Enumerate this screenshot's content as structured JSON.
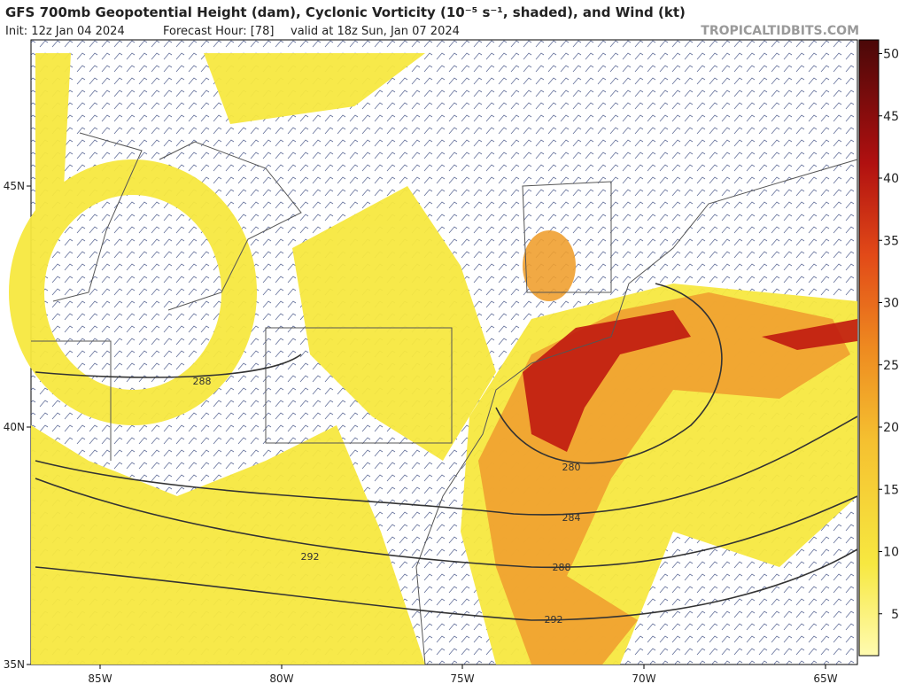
{
  "header": {
    "title": "GFS 700mb Geopotential Height (dam), Cyclonic Vorticity (10⁻⁵ s⁻¹, shaded), and Wind (kt)",
    "init": "Init: 12z Jan 04 2024",
    "forecast_hour": "Forecast Hour: [78]",
    "valid": "valid at 18z Sun, Jan 07 2024",
    "site": "TROPICALTIDBITS.COM"
  },
  "map": {
    "longitude_labels": [
      "85W",
      "80W",
      "75W",
      "70W",
      "65W"
    ],
    "latitude_labels": [
      "45N",
      "40N",
      "35N"
    ],
    "contour_labels": [
      280,
      284,
      288,
      292,
      288,
      292
    ]
  },
  "colorbar": {
    "ticks": [
      5,
      10,
      15,
      20,
      25,
      30,
      35,
      40,
      45,
      50
    ]
  }
}
